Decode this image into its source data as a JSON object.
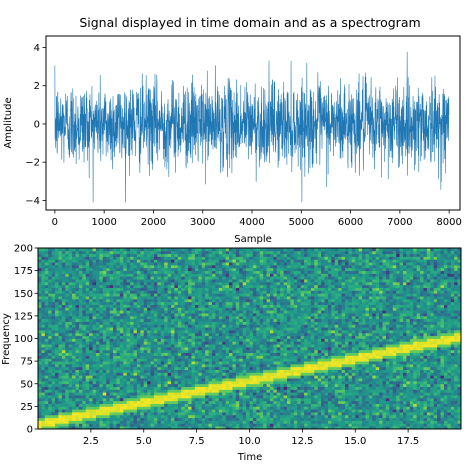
{
  "chart_data": [
    {
      "type": "line",
      "title": "Signal displayed in time domain and as a spectrogram",
      "xlabel": "Sample",
      "ylabel": "Amplitude",
      "xlim": [
        -180,
        8220
      ],
      "ylim": [
        -4.5,
        4.6
      ],
      "xticks": [
        0,
        1000,
        2000,
        3000,
        4000,
        5000,
        6000,
        7000,
        8000
      ],
      "yticks": [
        -4,
        -2,
        0,
        2,
        4
      ],
      "n_samples": 8000,
      "amplitude_std": 1.1,
      "amplitude_range": [
        -4.1,
        4.2
      ],
      "color": "#1f77b4",
      "grid": false
    },
    {
      "type": "heatmap",
      "xlabel": "Time",
      "ylabel": "Frequency",
      "xlim": [
        0,
        20
      ],
      "ylim": [
        0,
        200
      ],
      "xticks": [
        2.5,
        5.0,
        7.5,
        10.0,
        12.5,
        15.0,
        17.5
      ],
      "yticks": [
        0,
        25,
        50,
        75,
        100,
        125,
        150,
        175,
        200
      ],
      "chirp": {
        "time": [
          0,
          20
        ],
        "frequency": [
          5,
          102
        ]
      },
      "colormap": "viridis",
      "grid": false
    }
  ]
}
